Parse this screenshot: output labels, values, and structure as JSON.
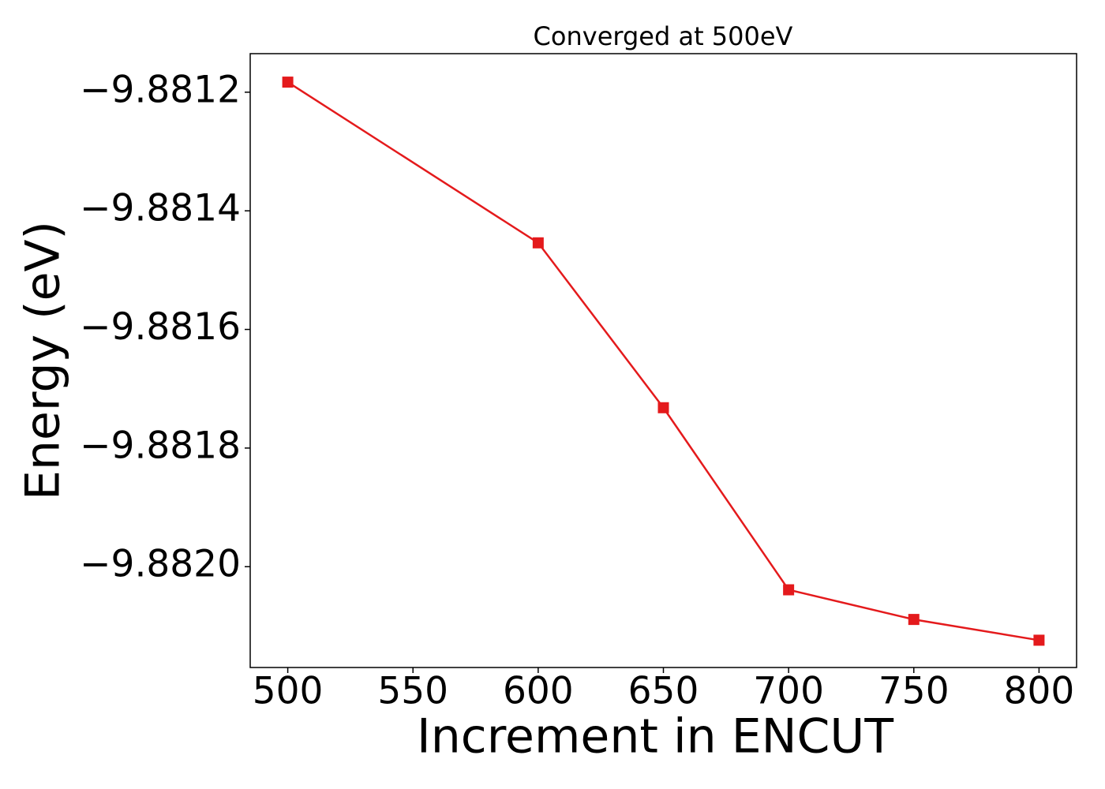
{
  "chart_data": {
    "type": "line",
    "title": "Converged at 500eV",
    "xlabel": "Increment in ENCUT",
    "ylabel": "Energy (eV)",
    "x": [
      500,
      600,
      650,
      700,
      750,
      800
    ],
    "series": [
      {
        "color": "#e41a1c",
        "values": [
          -9.881183,
          -9.881454,
          -9.881732,
          -9.882039,
          -9.882089,
          -9.882124
        ]
      }
    ],
    "xlim": [
      485,
      815
    ],
    "xticks": [
      500,
      550,
      600,
      650,
      700,
      750,
      800
    ],
    "ylim": [
      -9.88217,
      -9.881135
    ],
    "yticks": [
      {
        "value": -9.882,
        "label": "−9.8820"
      },
      {
        "value": -9.8818,
        "label": "−9.8818"
      },
      {
        "value": -9.8816,
        "label": "−9.8816"
      },
      {
        "value": -9.8814,
        "label": "−9.8814"
      },
      {
        "value": -9.8812,
        "label": "−9.8812"
      }
    ],
    "grid": false
  }
}
